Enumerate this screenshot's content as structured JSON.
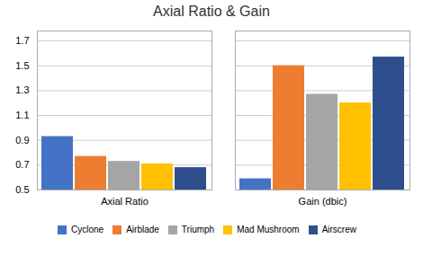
{
  "chart_data": {
    "type": "bar",
    "title": "Axial Ratio & Gain",
    "categories": [
      "Axial Ratio",
      "Gain (dbic)"
    ],
    "series": [
      {
        "name": "Cyclone",
        "color": "#4472C4",
        "values": [
          0.93,
          0.59
        ]
      },
      {
        "name": "Airblade",
        "color": "#ED7D31",
        "values": [
          0.77,
          1.5
        ]
      },
      {
        "name": "Triumph",
        "color": "#A5A5A5",
        "values": [
          0.73,
          1.27
        ]
      },
      {
        "name": "Mad Mushroom",
        "color": "#FFC000",
        "values": [
          0.71,
          1.2
        ]
      },
      {
        "name": "Airscrew",
        "color": "#2E4F8C",
        "values": [
          0.68,
          1.57
        ]
      }
    ],
    "ylim": [
      0.5,
      1.78
    ],
    "yticks": [
      0.5,
      0.7,
      0.9,
      1.1,
      1.3,
      1.5,
      1.7
    ],
    "grid": true,
    "legend": "bottom"
  }
}
